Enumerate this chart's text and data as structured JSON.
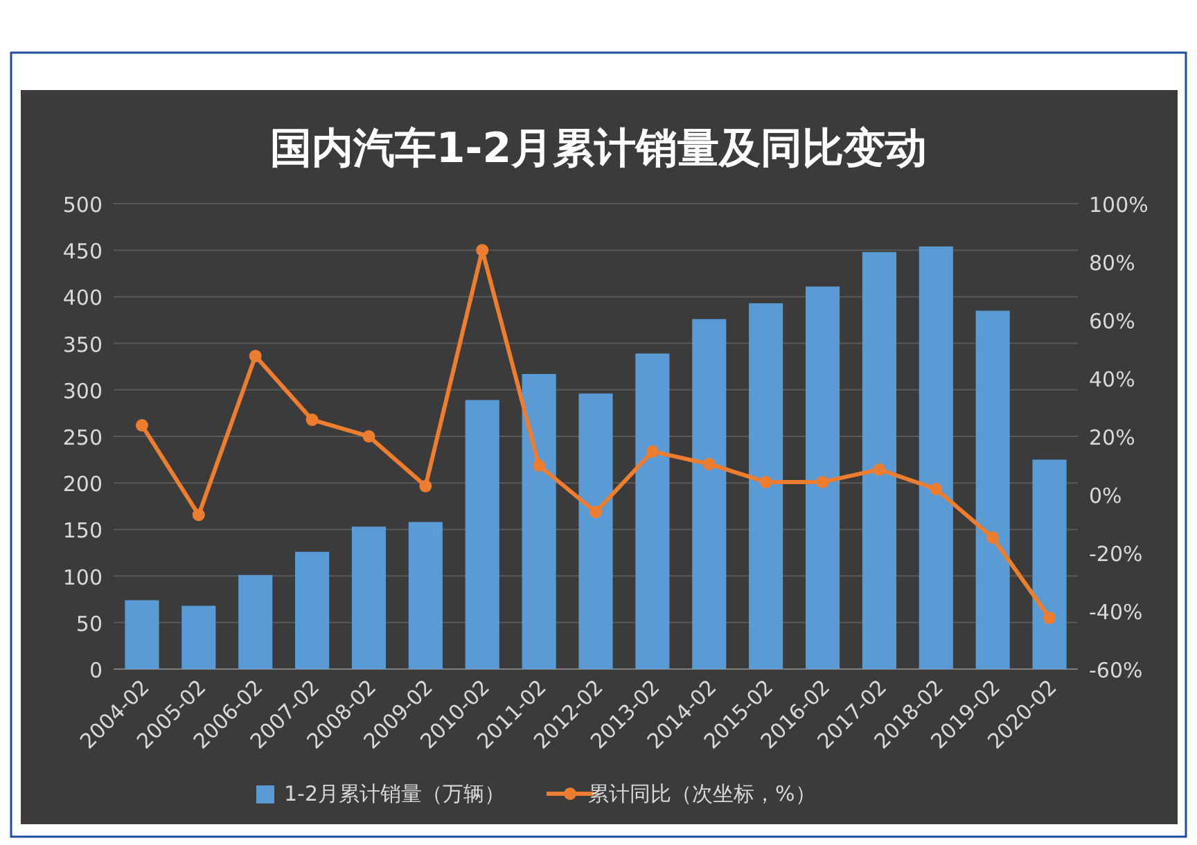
{
  "chart_data": {
    "type": "bar",
    "title": "国内汽车1-2月累计销量及同比变动",
    "categories": [
      "2004-02",
      "2005-02",
      "2006-02",
      "2007-02",
      "2008-02",
      "2009-02",
      "2010-02",
      "2011-02",
      "2012-02",
      "2013-02",
      "2014-02",
      "2015-02",
      "2016-02",
      "2017-02",
      "2018-02",
      "2019-02",
      "2020-02"
    ],
    "series": [
      {
        "name": "1-2月累计销量（万辆）",
        "color": "#5b9bd5",
        "values": [
          74,
          68,
          101,
          126,
          153,
          158,
          289,
          317,
          296,
          339,
          376,
          393,
          411,
          448,
          454,
          385,
          225
        ]
      },
      {
        "name": "累计同比（次坐标，%）",
        "type": "line",
        "axis": "y2",
        "color": "#ed7d31",
        "values": [
          23.8,
          -7,
          47.6,
          25.7,
          20,
          2.9,
          84,
          10,
          -6,
          14.8,
          10.5,
          4.3,
          4.3,
          8.6,
          1.9,
          -14.8,
          -42.4
        ]
      }
    ],
    "ylim": [
      0,
      500
    ],
    "yticks": [
      0,
      50,
      100,
      150,
      200,
      250,
      300,
      350,
      400,
      450,
      500
    ],
    "y2lim": [
      -60,
      100
    ],
    "y2ticks": [
      {
        "value": -60,
        "label": "-60%"
      },
      {
        "value": -40,
        "label": "-40%"
      },
      {
        "value": -20,
        "label": "-20%"
      },
      {
        "value": 0,
        "label": "0%"
      },
      {
        "value": 20,
        "label": "20%"
      },
      {
        "value": 40,
        "label": "40%"
      },
      {
        "value": 60,
        "label": "60%"
      },
      {
        "value": 80,
        "label": "80%"
      },
      {
        "value": 100,
        "label": "100%"
      }
    ],
    "grid": "y",
    "legend": "bottom",
    "marker": "circle",
    "line_style": "solid"
  }
}
